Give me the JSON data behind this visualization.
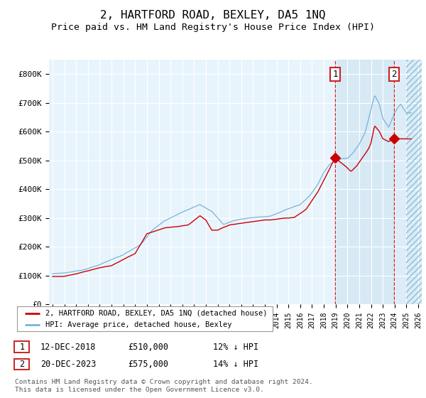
{
  "title": "2, HARTFORD ROAD, BEXLEY, DA5 1NQ",
  "subtitle": "Price paid vs. HM Land Registry's House Price Index (HPI)",
  "title_fontsize": 11.5,
  "subtitle_fontsize": 9.5,
  "ylim": [
    0,
    850000
  ],
  "yticks": [
    0,
    100000,
    200000,
    300000,
    400000,
    500000,
    600000,
    700000,
    800000
  ],
  "ytick_labels": [
    "£0",
    "£100K",
    "£200K",
    "£300K",
    "£400K",
    "£500K",
    "£600K",
    "£700K",
    "£800K"
  ],
  "hpi_color": "#7ab3d8",
  "price_color": "#cc0000",
  "point1_x": 2018.958,
  "point1_value": 510000,
  "point2_x": 2023.958,
  "point2_value": 575000,
  "legend_line1": "2, HARTFORD ROAD, BEXLEY, DA5 1NQ (detached house)",
  "legend_line2": "HPI: Average price, detached house, Bexley",
  "table_row1": [
    "1",
    "12-DEC-2018",
    "£510,000",
    "12% ↓ HPI"
  ],
  "table_row2": [
    "2",
    "20-DEC-2023",
    "£575,000",
    "14% ↓ HPI"
  ],
  "footnote": "Contains HM Land Registry data © Crown copyright and database right 2024.\nThis data is licensed under the Open Government Licence v3.0.",
  "plot_bg_color": "#e8f4fc",
  "grid_color": "#ffffff",
  "xlim_start": 1994.7,
  "xlim_end": 2026.3,
  "hatch_start": 2025.0,
  "xtick_years": [
    1995,
    1996,
    1997,
    1998,
    1999,
    2000,
    2001,
    2002,
    2003,
    2004,
    2005,
    2006,
    2007,
    2008,
    2009,
    2010,
    2011,
    2012,
    2013,
    2014,
    2015,
    2016,
    2017,
    2018,
    2019,
    2020,
    2021,
    2022,
    2023,
    2024,
    2025,
    2026
  ]
}
